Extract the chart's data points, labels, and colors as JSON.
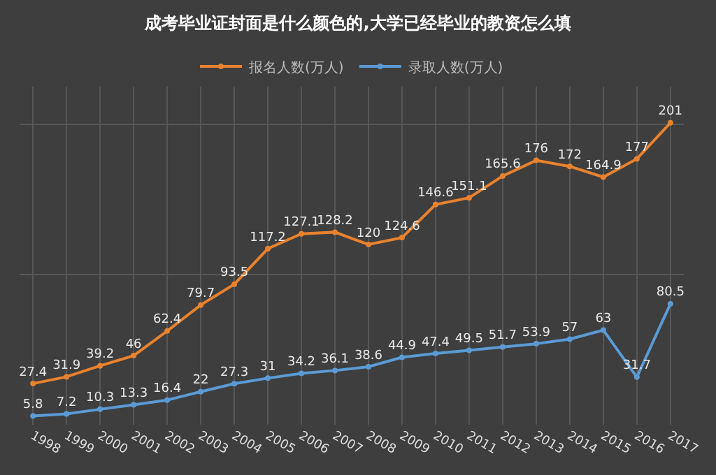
{
  "chart_data": {
    "type": "line",
    "title": "成考毕业证封面是什么颜色的,大学已经毕业的教资怎么填",
    "categories": [
      "1998",
      "1999",
      "2000",
      "2001",
      "2002",
      "2003",
      "2004",
      "2005",
      "2006",
      "2007",
      "2008",
      "2009",
      "2010",
      "2011",
      "2012",
      "2013",
      "2014",
      "2015",
      "2016",
      "2017"
    ],
    "series": [
      {
        "name": "报名人数(万人)",
        "color": "#e8822e",
        "values": [
          27.4,
          31.9,
          39.2,
          46,
          62.4,
          79.7,
          93.5,
          117.2,
          127.1,
          128.2,
          120,
          124.6,
          146.6,
          151.1,
          165.6,
          176,
          172,
          164.9,
          177,
          201
        ]
      },
      {
        "name": "录取人数(万人)",
        "color": "#5b9bd5",
        "values": [
          5.8,
          7.2,
          10.3,
          13.3,
          16.4,
          22,
          27.3,
          31,
          34.2,
          36.1,
          38.6,
          44.9,
          47.4,
          49.5,
          51.7,
          53.9,
          57,
          63,
          31.7,
          80.5
        ]
      }
    ],
    "data_labels": true,
    "marker": "circle",
    "line_style": "solid",
    "grid": true,
    "legend": "top",
    "tick_labels": "x"
  }
}
